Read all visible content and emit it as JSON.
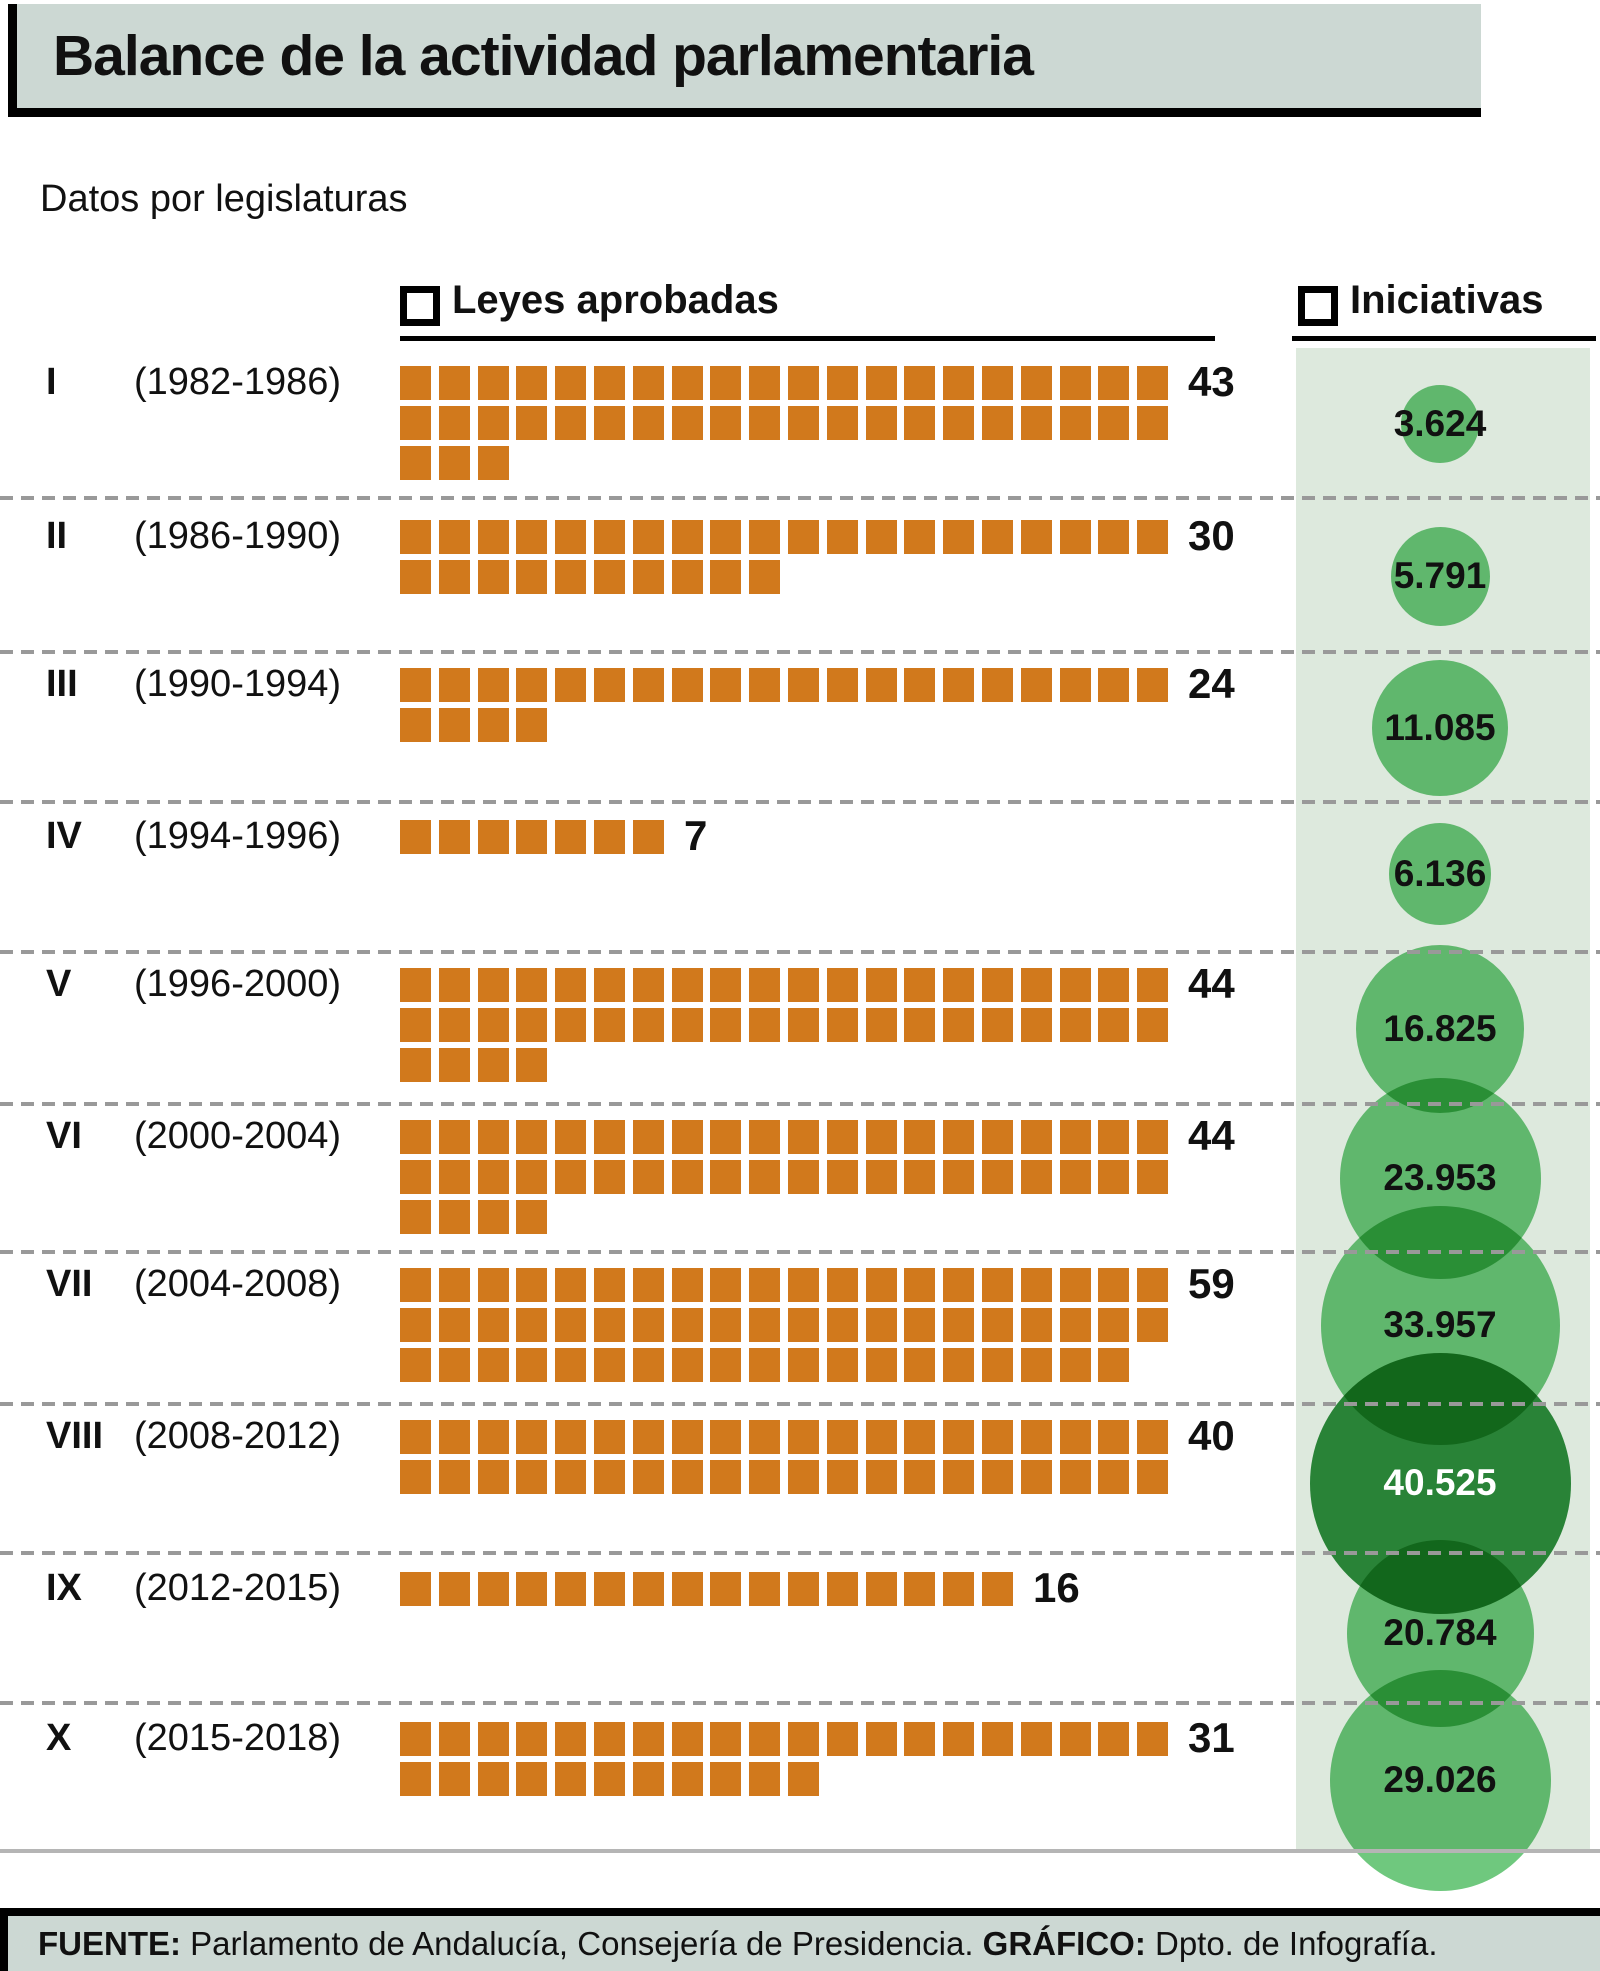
{
  "header": {
    "title": "Balance de la actividad parlamentaria",
    "subtitle": "Datos por legislaturas"
  },
  "legend": {
    "laws_label": "Leyes aprobadas",
    "initiatives_label": "Iniciativas"
  },
  "colors": {
    "square_orange": "#d1791c",
    "bubble_green": "#6fc87e",
    "bubble_dark_green": "#2f8f3f",
    "band_bg": "#dde9dd",
    "panel_bg": "#ccd8d3",
    "bubble_text_dark": "#111111",
    "bubble_text_light": "#ffffff"
  },
  "footer": {
    "source_label": "FUENTE:",
    "source_text": " Parlamento de Andalucía, Consejería de Presidencia. ",
    "graphic_label": "GRÁFICO:",
    "graphic_text": " Dpto. de Infografía."
  },
  "chart_data": {
    "type": "bar",
    "subtype": "pictogram-waffle-plus-bubbles",
    "title": "Balance de la actividad parlamentaria",
    "subtitle": "Datos por legislaturas",
    "series": [
      {
        "name": "Leyes aprobadas",
        "glyph": "orange-square",
        "squares_per_row": 20
      },
      {
        "name": "Iniciativas",
        "glyph": "green-circle",
        "scaling": "area-proportional"
      }
    ],
    "rows": [
      {
        "legislature": "I",
        "years": "(1982-1986)",
        "laws": 43,
        "initiatives": 3624,
        "initiatives_label": "3.624",
        "highlight": false
      },
      {
        "legislature": "II",
        "years": "(1986-1990)",
        "laws": 30,
        "initiatives": 5791,
        "initiatives_label": "5.791",
        "highlight": false
      },
      {
        "legislature": "III",
        "years": "(1990-1994)",
        "laws": 24,
        "initiatives": 11085,
        "initiatives_label": "11.085",
        "highlight": false
      },
      {
        "legislature": "IV",
        "years": "(1994-1996)",
        "laws": 7,
        "initiatives": 6136,
        "initiatives_label": "6.136",
        "highlight": false
      },
      {
        "legislature": "V",
        "years": "(1996-2000)",
        "laws": 44,
        "initiatives": 16825,
        "initiatives_label": "16.825",
        "highlight": false
      },
      {
        "legislature": "VI",
        "years": "(2000-2004)",
        "laws": 44,
        "initiatives": 23953,
        "initiatives_label": "23.953",
        "highlight": false
      },
      {
        "legislature": "VII",
        "years": "(2004-2008)",
        "laws": 59,
        "initiatives": 33957,
        "initiatives_label": "33.957",
        "highlight": false
      },
      {
        "legislature": "VIII",
        "years": "(2008-2012)",
        "laws": 40,
        "initiatives": 40525,
        "initiatives_label": "40.525",
        "highlight": true
      },
      {
        "legislature": "IX",
        "years": "(2012-2015)",
        "laws": 16,
        "initiatives": 20784,
        "initiatives_label": "20.784",
        "highlight": false
      },
      {
        "legislature": "X",
        "years": "(2015-2018)",
        "laws": 31,
        "initiatives": 29026,
        "initiatives_label": "29.026",
        "highlight": false
      }
    ]
  }
}
